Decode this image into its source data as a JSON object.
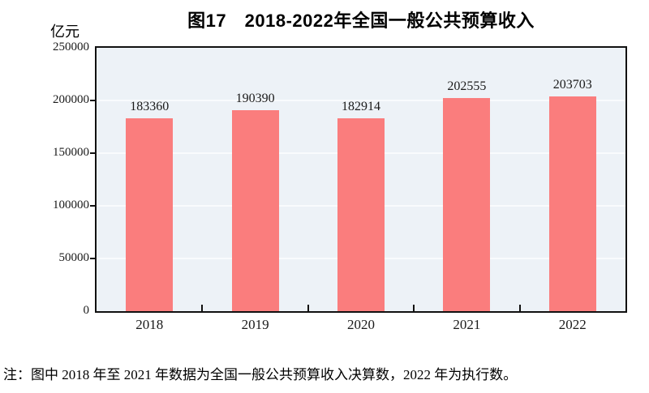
{
  "header": {
    "title": "图17　2018-2022年全国一般公共预算收入",
    "unit_label": "亿元"
  },
  "footer": {
    "note": "注：图中 2018 年至 2021 年数据为全国一般公共预算收入决算数，2022 年为执行数。"
  },
  "colors": {
    "bar": "#fa7d7d",
    "plot_background": "#edf2f7",
    "gridline": "#f9fbfd",
    "axis": "#111111",
    "text": "#000000"
  },
  "chart_data": {
    "type": "bar",
    "title": "图17　2018-2022年全国一般公共预算收入",
    "categories": [
      "2018",
      "2019",
      "2020",
      "2021",
      "2022"
    ],
    "values": [
      183360,
      190390,
      182914,
      202555,
      203703
    ],
    "data_labels": [
      "183360",
      "190390",
      "182914",
      "202555",
      "203703"
    ],
    "xlabel": "",
    "ylabel": "亿元",
    "ylim": [
      0,
      250000
    ],
    "yticks": [
      0,
      50000,
      100000,
      150000,
      200000,
      250000
    ],
    "ytick_labels": [
      "0",
      "50000",
      "100000",
      "150000",
      "200000",
      "250000"
    ],
    "grid": true,
    "gridlines_at": [
      50000,
      100000,
      150000,
      200000
    ],
    "legend_position": "none"
  }
}
